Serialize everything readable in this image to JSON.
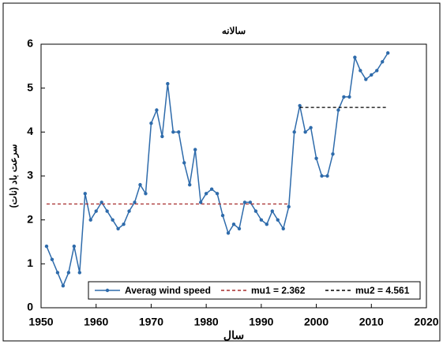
{
  "chart_data": {
    "type": "line",
    "title": "سالانه",
    "x_label": "سال",
    "y_label": "سرعت باد (نات)",
    "x": [
      1951,
      1952,
      1953,
      1954,
      1955,
      1956,
      1957,
      1958,
      1959,
      1960,
      1961,
      1962,
      1963,
      1964,
      1965,
      1966,
      1967,
      1968,
      1969,
      1970,
      1971,
      1972,
      1973,
      1974,
      1975,
      1976,
      1977,
      1978,
      1979,
      1980,
      1981,
      1982,
      1983,
      1984,
      1985,
      1986,
      1987,
      1988,
      1989,
      1990,
      1991,
      1992,
      1993,
      1994,
      1995,
      1996,
      1997,
      1998,
      1999,
      2000,
      2001,
      2002,
      2003,
      2004,
      2005,
      2006,
      2007,
      2008,
      2009,
      2010,
      2011,
      2012,
      2013
    ],
    "series": [
      {
        "name": "Averag wind speed",
        "color": "#2e6bab",
        "marker": true,
        "values": [
          1.4,
          1.1,
          0.8,
          0.5,
          0.8,
          1.4,
          0.8,
          2.6,
          2.0,
          2.2,
          2.4,
          2.2,
          2.0,
          1.8,
          1.9,
          2.2,
          2.4,
          2.8,
          2.6,
          4.2,
          4.5,
          3.9,
          5.1,
          4.0,
          4.0,
          3.3,
          2.8,
          3.6,
          2.4,
          2.6,
          2.7,
          2.6,
          2.1,
          1.7,
          1.9,
          1.8,
          2.4,
          2.4,
          2.2,
          2.0,
          1.9,
          2.2,
          2.0,
          1.8,
          2.3,
          4.0,
          4.6,
          4.0,
          4.1,
          3.4,
          3.0,
          3.0,
          3.5,
          4.5,
          4.8,
          4.8,
          5.7,
          5.4,
          5.2,
          5.3,
          5.4,
          5.6,
          5.8
        ]
      },
      {
        "name": "mu1 = 2.362",
        "color": "#a52a2a",
        "dashed": true,
        "x": [
          1951,
          1995
        ],
        "values": [
          2.362,
          2.362
        ]
      },
      {
        "name": "mu2 = 4.561",
        "color": "#000000",
        "dashed": true,
        "x": [
          1997,
          2013
        ],
        "values": [
          4.561,
          4.561
        ]
      }
    ],
    "xlim": [
      1950,
      2020
    ],
    "xticks": [
      1950,
      1960,
      1970,
      1980,
      1990,
      2000,
      2010,
      2020
    ],
    "ylim": [
      0,
      6
    ],
    "yticks": [
      0,
      1,
      2,
      3,
      4,
      5,
      6
    ],
    "grid": false,
    "legend": "bottom"
  }
}
